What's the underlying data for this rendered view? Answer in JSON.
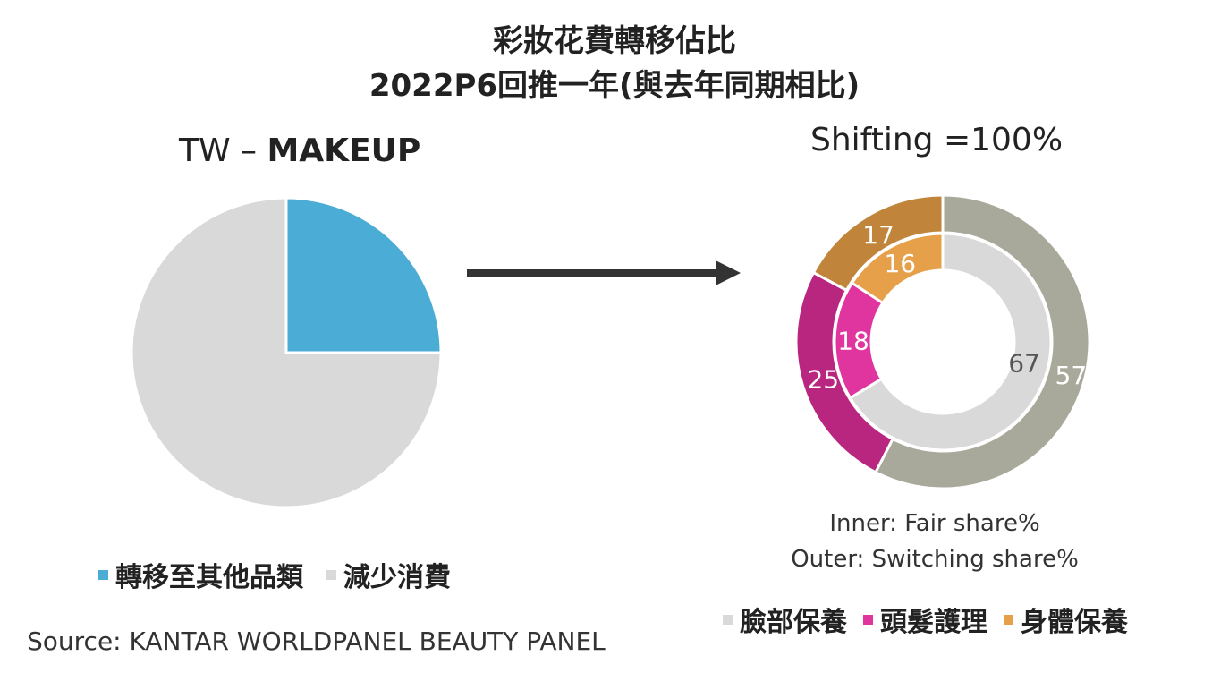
{
  "title_line1": "彩妝花費轉移佔比",
  "title_line2": "2022P6回推一年(與去年同期相比)",
  "left_subtitle_prefix": "TW – ",
  "left_subtitle_bold": "MAKEUP",
  "right_subtitle": "Shifting =100%",
  "note_inner": "Inner: Fair share%",
  "note_outer": "Outer: Switching share%",
  "source": "Source: KANTAR WORLDPANEL BEAUTY PANEL",
  "legend_left": [
    {
      "label": "轉移至其他品類",
      "color": "#4badd6"
    },
    {
      "label": "減少消費",
      "color": "#d9d9d9"
    }
  ],
  "legend_right": [
    {
      "label": "臉部保養",
      "color": "#d9d9d9"
    },
    {
      "label": "頭髮護理",
      "color": "#e0359e"
    },
    {
      "label": "身體保養",
      "color": "#e6a04a"
    }
  ],
  "chart_data": [
    {
      "type": "pie",
      "title": "TW – MAKEUP",
      "slices": [
        {
          "label": "轉移至其他品類",
          "value": 25,
          "color": "#4badd6"
        },
        {
          "label": "減少消費",
          "value": 75,
          "color": "#d9d9d9"
        }
      ]
    },
    {
      "type": "pie",
      "title": "Shifting =100%",
      "rings": [
        {
          "name": "Inner: Fair share%",
          "slices": [
            {
              "label": "臉部保養",
              "value": 67,
              "color": "#d9d9d9",
              "text_color": "#555555"
            },
            {
              "label": "頭髮護理",
              "value": 18,
              "color": "#e0359e",
              "text_color": "#ffffff"
            },
            {
              "label": "身體保養",
              "value": 16,
              "color": "#e6a04a",
              "text_color": "#ffffff"
            }
          ]
        },
        {
          "name": "Outer: Switching share%",
          "slices": [
            {
              "label": "臉部保養",
              "value": 57,
              "color": "#a9a99b",
              "text_color": "#ffffff"
            },
            {
              "label": "頭髮護理",
              "value": 25,
              "color": "#b8267f",
              "text_color": "#ffffff"
            },
            {
              "label": "身體保養",
              "value": 17,
              "color": "#c0853a",
              "text_color": "#ffffff"
            }
          ]
        }
      ]
    }
  ]
}
